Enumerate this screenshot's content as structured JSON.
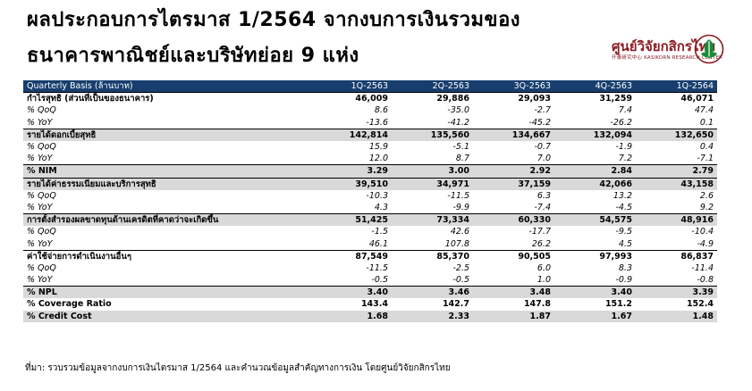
{
  "title": {
    "line1": "ผลประกอบการไตรมาส 1/2564 จากงบการเงินรวมของ",
    "line2": "ธนาคารพาณิชย์และบริษัทย่อย 9 แห่ง"
  },
  "logo": {
    "text": "ศูนย์วิจัยกสิกรไทย",
    "subtext": "开泰研究中心  KASIKORN RESEARCH CENTER",
    "icon": "kasikorn-leaf-icon",
    "color": "#8a1c22"
  },
  "table": {
    "header": [
      "Quarterly Basis (ล้านบาท)",
      "1Q-2563",
      "2Q-2563",
      "3Q-2563",
      "4Q-2563",
      "1Q-2564"
    ],
    "header_color": "#173e6e",
    "rows": [
      {
        "label": "กำไรสุทธิ (ส่วนที่เป็นของธนาคาร)",
        "values": [
          "46,009",
          "29,886",
          "29,093",
          "31,259",
          "46,071"
        ],
        "kind": "main first"
      },
      {
        "label": "% QoQ",
        "values": [
          "8.6",
          "-35.0",
          "-2.7",
          "7.4",
          "47.4"
        ],
        "kind": "sub"
      },
      {
        "label": "% YoY",
        "values": [
          "-13.6",
          "-41.2",
          "-45.2",
          "-26.2",
          "0.1"
        ],
        "kind": "sub bottom"
      },
      {
        "label": "รายได้ดอกเบี้ยสุทธิ",
        "values": [
          "142,814",
          "135,560",
          "134,667",
          "132,094",
          "132,650"
        ],
        "kind": "main shade"
      },
      {
        "label": "% QoQ",
        "values": [
          "15.9",
          "-5.1",
          "-0.7",
          "-1.9",
          "0.4"
        ],
        "kind": "sub"
      },
      {
        "label": "% YoY",
        "values": [
          "12.0",
          "8.7",
          "7.0",
          "7.2",
          "-7.1"
        ],
        "kind": "sub bottom"
      },
      {
        "label": "% NIM",
        "values": [
          "3.29",
          "3.00",
          "2.92",
          "2.84",
          "2.79"
        ],
        "kind": "main shade bottom"
      },
      {
        "label": "รายได้ค่าธรรมเนียมและบริการสุทธิ",
        "values": [
          "39,510",
          "34,971",
          "37,159",
          "42,066",
          "43,158"
        ],
        "kind": "main shade"
      },
      {
        "label": "% QoQ",
        "values": [
          "-10.3",
          "-11.5",
          "6.3",
          "13.2",
          "2.6"
        ],
        "kind": "sub"
      },
      {
        "label": "% YoY",
        "values": [
          "4.3",
          "-9.9",
          "-7.4",
          "-4.5",
          "9.2"
        ],
        "kind": "sub bottom"
      },
      {
        "label": "การตั้งสำรองผลขาดทุนด้านเครดิตที่คาดว่าจะเกิดขึ้น",
        "values": [
          "51,425",
          "73,334",
          "60,330",
          "54,575",
          "48,916"
        ],
        "kind": "main shade"
      },
      {
        "label": "% QoQ",
        "values": [
          "-1.5",
          "42.6",
          "-17.7",
          "-9.5",
          "-10.4"
        ],
        "kind": "sub"
      },
      {
        "label": "% YoY",
        "values": [
          "46.1",
          "107.8",
          "26.2",
          "4.5",
          "-4.9"
        ],
        "kind": "sub bottom"
      },
      {
        "label": "ค่าใช้จ่ายการดำเนินงานอื่นๆ",
        "values": [
          "87,549",
          "85,370",
          "90,505",
          "97,993",
          "86,837"
        ],
        "kind": "main"
      },
      {
        "label": "% QoQ",
        "values": [
          "-11.5",
          "-2.5",
          "6.0",
          "8.3",
          "-11.4"
        ],
        "kind": "sub"
      },
      {
        "label": "% YoY",
        "values": [
          "-0.5",
          "-0.5",
          "1.0",
          "-0.9",
          "-0.8"
        ],
        "kind": "sub bottom"
      },
      {
        "label": "% NPL",
        "values": [
          "3.40",
          "3.46",
          "3.48",
          "3.40",
          "3.39"
        ],
        "kind": "main shade"
      },
      {
        "label": "% Coverage Ratio",
        "values": [
          "143.4",
          "142.7",
          "147.8",
          "151.2",
          "152.4"
        ],
        "kind": "main"
      },
      {
        "label": "% Credit Cost",
        "values": [
          "1.68",
          "2.33",
          "1.87",
          "1.67",
          "1.48"
        ],
        "kind": "main shade"
      }
    ]
  },
  "source": "ที่มา: รวบรวมข้อมูลจากงบการเงินไตรมาส 1/2564 และคำนวณข้อมูลสำคัญทางการเงิน โดยศูนย์วิจัยกสิกรไทย"
}
